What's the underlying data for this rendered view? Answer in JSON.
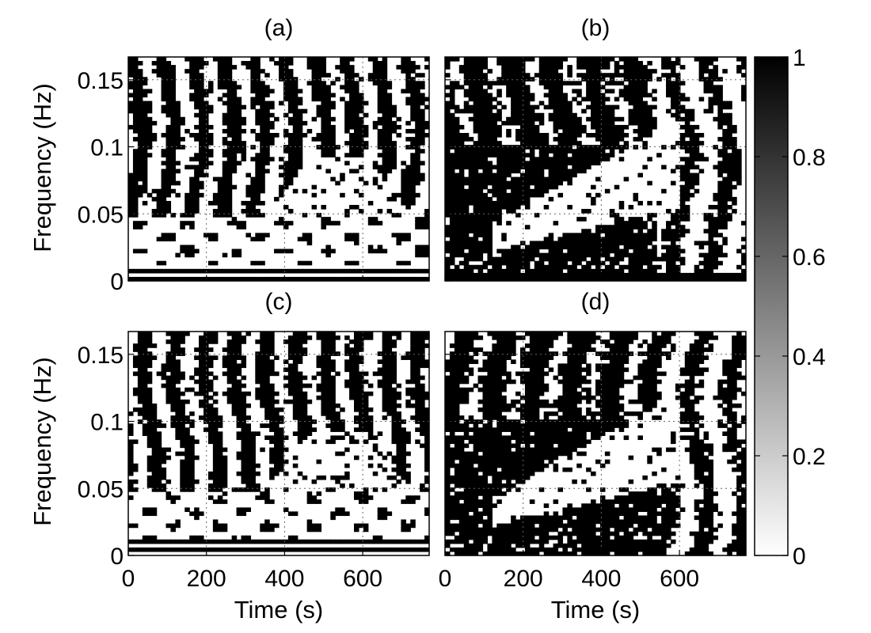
{
  "chart_data": [
    {
      "type": "heatmap",
      "panel_label": "(a)",
      "xlabel": "",
      "ylabel": "Frequency (Hz)",
      "xlim": [
        0,
        770
      ],
      "ylim": [
        0,
        0.167
      ],
      "x_ticks": [
        0,
        200,
        400,
        600
      ],
      "y_ticks": [
        0,
        0.05,
        0.1,
        0.15
      ],
      "x_tick_labels": [],
      "y_tick_labels": [
        "0",
        "0.05",
        "0.1",
        "0.15"
      ],
      "grid": true,
      "dark_fraction_by_band": [
        {
          "freq_range": [
            0.0,
            0.012
          ],
          "value": 0.5,
          "pattern": "horizontal stripes"
        },
        {
          "freq_range": [
            0.012,
            0.045
          ],
          "value": 0.3,
          "pattern": "mostly low coherence with dark blobs"
        },
        {
          "freq_range": [
            0.045,
            0.167
          ],
          "value": 0.7,
          "pattern": "vertical streaks"
        }
      ]
    },
    {
      "type": "heatmap",
      "panel_label": "(b)",
      "xlabel": "",
      "ylabel": "",
      "xlim": [
        0,
        770
      ],
      "ylim": [
        0,
        0.167
      ],
      "x_ticks": [
        0,
        200,
        400,
        600
      ],
      "y_ticks": [
        0,
        0.05,
        0.1,
        0.15
      ],
      "x_tick_labels": [],
      "y_tick_labels": [],
      "grid": true,
      "dark_fraction_by_band": [
        {
          "freq_range": [
            0.0,
            0.005
          ],
          "value": 0.5,
          "pattern": "horizontal stripes"
        },
        {
          "freq_range": [
            0.005,
            0.04
          ],
          "value": 0.6,
          "pattern": "dark with white streaks"
        },
        {
          "freq_range": [
            0.04,
            0.167
          ],
          "value": 0.75,
          "pattern": "dark region with white wedge rising to the right"
        }
      ]
    },
    {
      "type": "heatmap",
      "panel_label": "(c)",
      "xlabel": "Time (s)",
      "ylabel": "Frequency (Hz)",
      "xlim": [
        0,
        770
      ],
      "ylim": [
        0,
        0.167
      ],
      "x_ticks": [
        0,
        200,
        400,
        600
      ],
      "y_ticks": [
        0,
        0.05,
        0.1,
        0.15
      ],
      "x_tick_labels": [
        "0",
        "200",
        "400",
        "600"
      ],
      "y_tick_labels": [
        "0",
        "0.05",
        "0.1",
        "0.15"
      ],
      "grid": true,
      "dark_fraction_by_band": [
        {
          "freq_range": [
            0.0,
            0.012
          ],
          "value": 0.8,
          "pattern": "dark with white stripes"
        },
        {
          "freq_range": [
            0.012,
            0.045
          ],
          "value": 0.3,
          "pattern": "mostly low coherence with dark blobs"
        },
        {
          "freq_range": [
            0.045,
            0.167
          ],
          "value": 0.7,
          "pattern": "vertical streaks"
        }
      ]
    },
    {
      "type": "heatmap",
      "panel_label": "(d)",
      "xlabel": "Time (s)",
      "ylabel": "",
      "xlim": [
        0,
        770
      ],
      "ylim": [
        0,
        0.167
      ],
      "x_ticks": [
        0,
        200,
        400,
        600
      ],
      "y_ticks": [
        0,
        0.05,
        0.1,
        0.15
      ],
      "x_tick_labels": [
        "0",
        "200",
        "400",
        "600"
      ],
      "y_tick_labels": [],
      "grid": true,
      "dark_fraction_by_band": [
        {
          "freq_range": [
            0.0,
            0.03
          ],
          "value": 0.9,
          "pattern": "dark"
        },
        {
          "freq_range": [
            0.03,
            0.167
          ],
          "value": 0.8,
          "pattern": "dark region with white wedge rising to the right"
        }
      ]
    }
  ],
  "colorbar": {
    "range": [
      0,
      1
    ],
    "ticks": [
      0,
      0.2,
      0.4,
      0.6,
      0.8,
      1
    ],
    "tick_labels": [
      "0",
      "0.2",
      "0.4",
      "0.6",
      "0.8",
      "1"
    ],
    "colormap": "gray reversed (0 = white, 1 = black)"
  },
  "colors": {
    "high": "#000000",
    "low": "#ffffff",
    "grid": "#666666",
    "frame": "#000000"
  }
}
